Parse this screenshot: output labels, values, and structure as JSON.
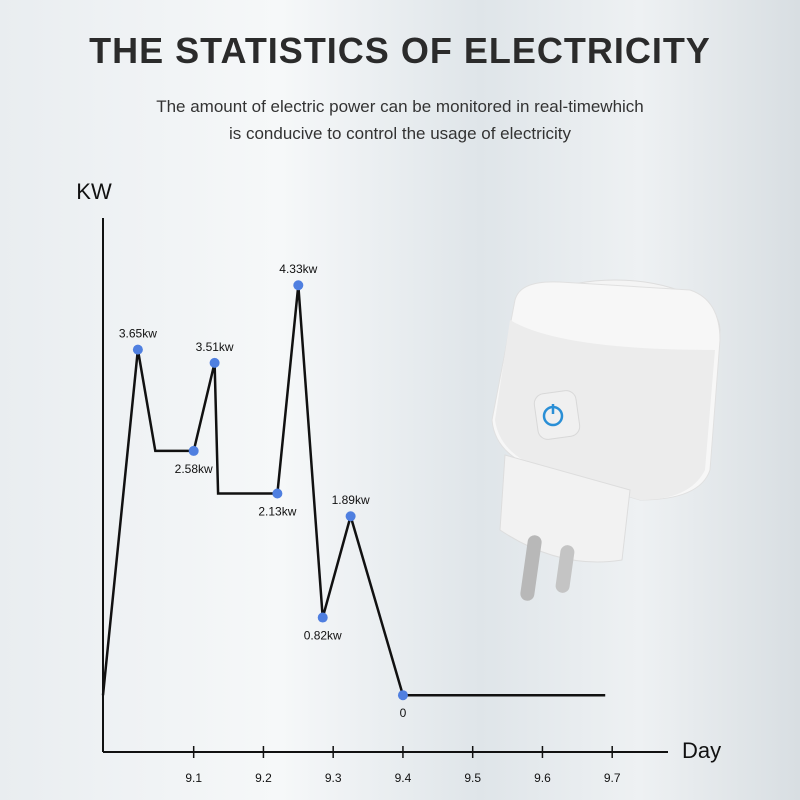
{
  "chart_data": {
    "type": "line",
    "title": "THE STATISTICS OF ELECTRICITY",
    "subtitle": [
      "The amount of electric power can be monitored in real-timewhich",
      "is conducive to control the usage of electricity"
    ],
    "y_label": "KW",
    "x_label": "Day",
    "x": [
      8.97,
      9.02,
      9.045,
      9.1,
      9.13,
      9.135,
      9.22,
      9.25,
      9.285,
      9.325,
      9.4,
      9.69
    ],
    "values": [
      0,
      3.65,
      2.58,
      2.58,
      3.51,
      2.13,
      2.13,
      4.33,
      0.82,
      1.89,
      0,
      0
    ],
    "value_labels": [
      null,
      "3.65kw",
      null,
      "2.58kw",
      "3.51kw",
      null,
      "2.13kw",
      "4.33kw",
      "0.82kw",
      "1.89kw",
      "0",
      null
    ],
    "color": "#111111",
    "marker_color": "#4f7fe0",
    "xlim": [
      8.97,
      9.78
    ],
    "ylim": [
      -0.6,
      5.04
    ],
    "xticks": [
      9.1,
      9.2,
      9.3,
      9.4,
      9.5,
      9.6,
      9.7
    ]
  }
}
